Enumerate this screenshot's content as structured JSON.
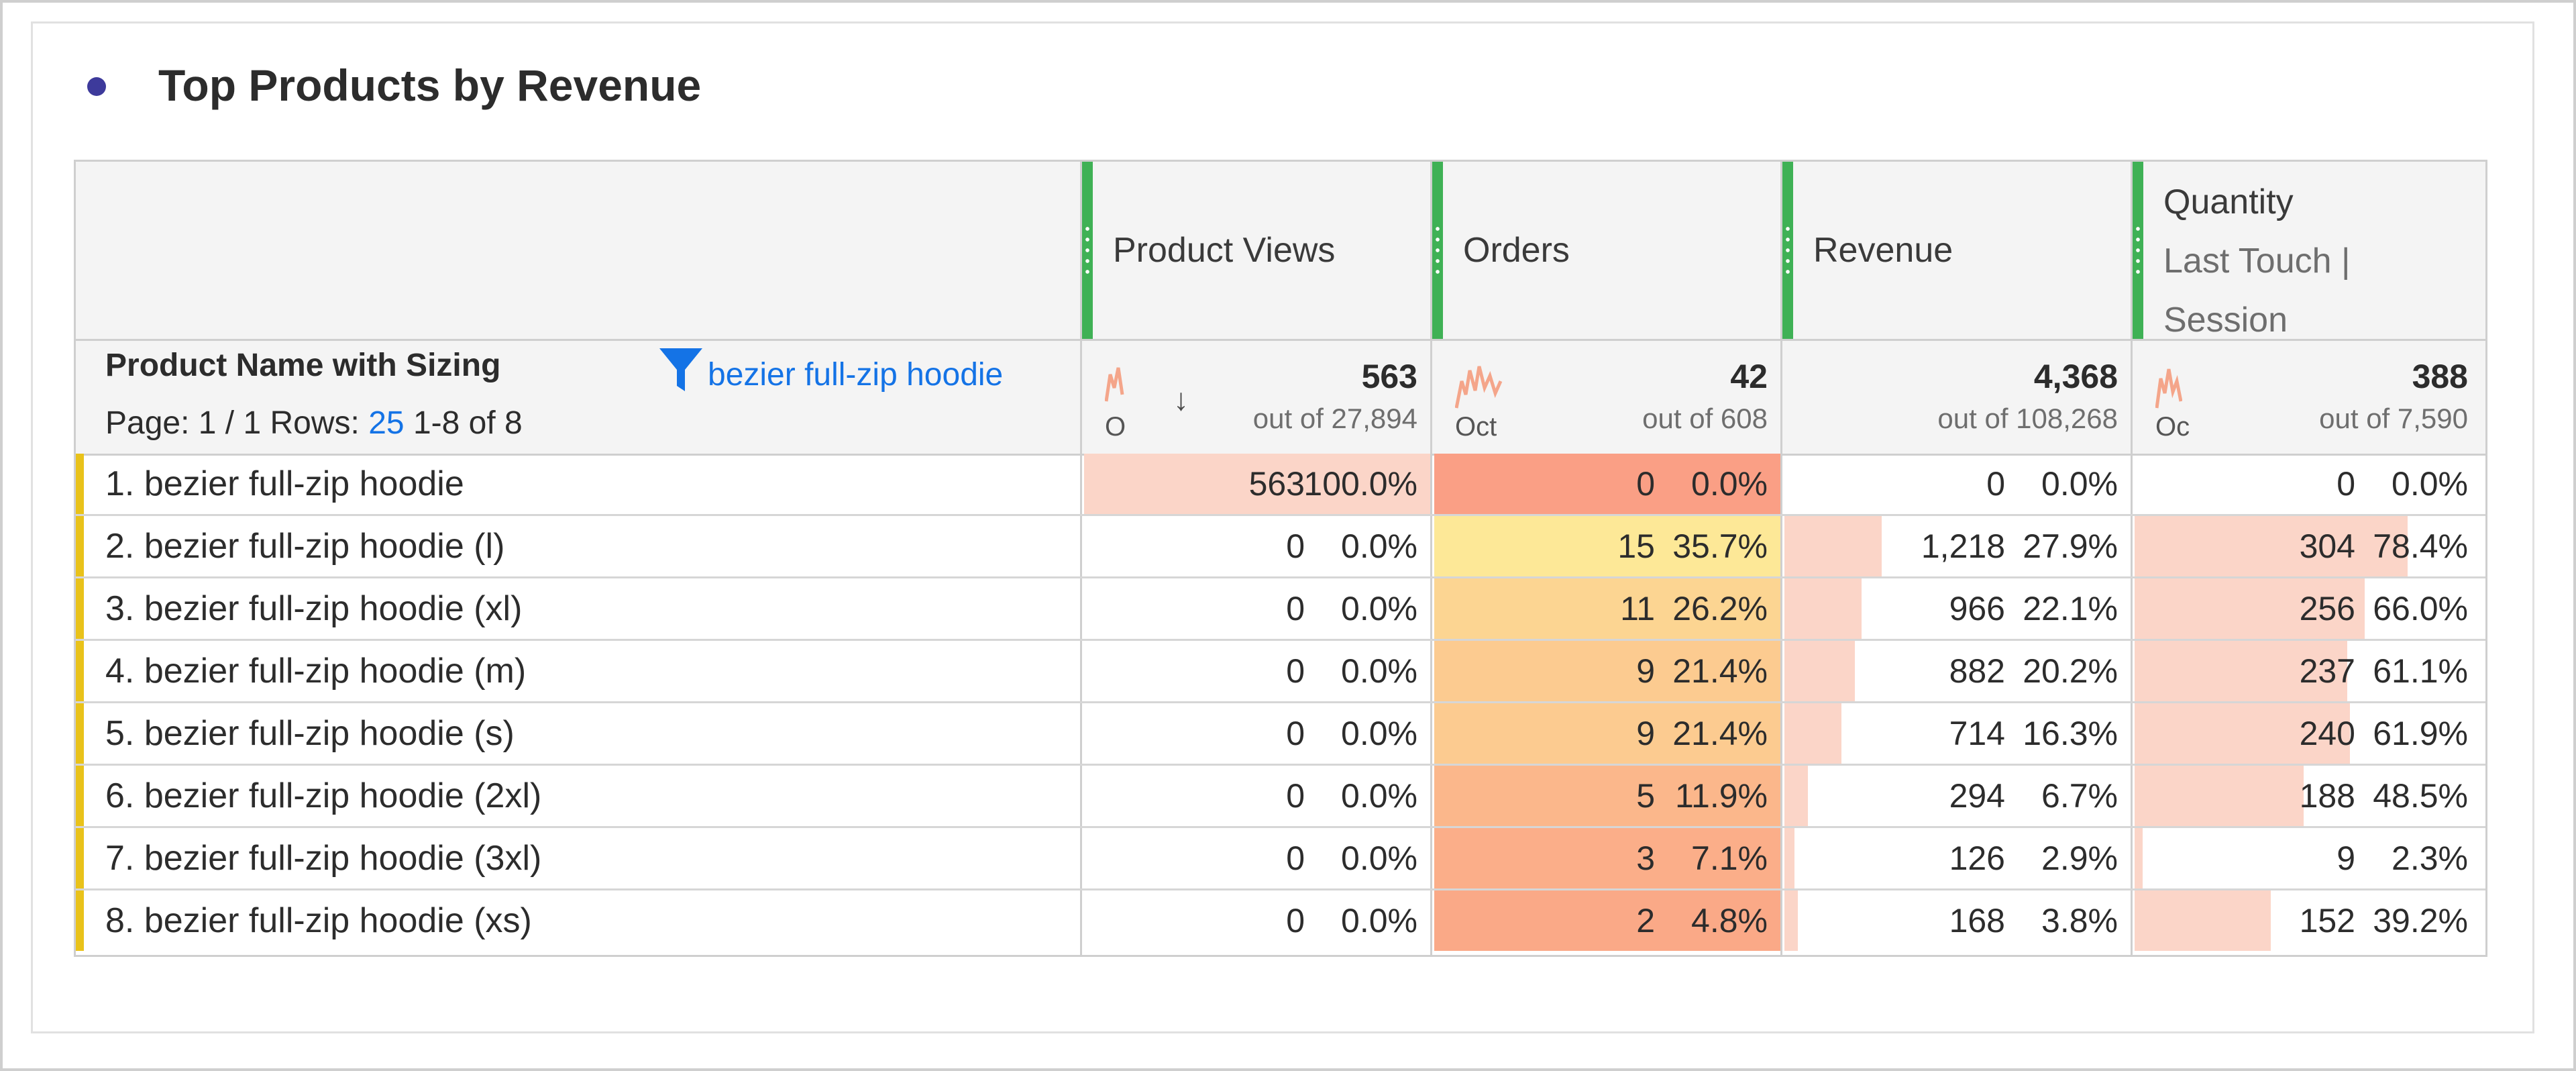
{
  "panel": {
    "title": "Top Products by Revenue"
  },
  "table": {
    "dimension_title": "Product Name with Sizing",
    "page_label": "Page: 1 / 1",
    "rows_label": "Rows:",
    "rows_value": "25",
    "range_label": "1-8 of 8",
    "filter_text": "bezier full-zip hoodie",
    "columns": [
      {
        "label": "Product Views",
        "total": "563",
        "out_of": "out of 27,894",
        "spark_label": "O"
      },
      {
        "label": "Orders",
        "total": "42",
        "out_of": "out of 608",
        "spark_label": "Oct"
      },
      {
        "label": "Revenue",
        "total": "4,368",
        "out_of": "out of 108,268",
        "spark_label": ""
      },
      {
        "label": "Quantity",
        "label_sub1": "Last Touch |",
        "label_sub2": "Session",
        "total": "388",
        "out_of": "out of 7,590",
        "spark_label": "Oc"
      }
    ],
    "sort_indicator": "↓",
    "rows": [
      {
        "index": "1.",
        "name": "bezier full-zip hoodie",
        "cells": [
          {
            "value": "563",
            "pct": "100.0%",
            "share": 1.0
          },
          {
            "value": "0",
            "pct": "0.0%",
            "share": 0.0
          },
          {
            "value": "0",
            "pct": "0.0%",
            "share": 0.0
          },
          {
            "value": "0",
            "pct": "0.0%",
            "share": 0.0
          }
        ]
      },
      {
        "index": "2.",
        "name": "bezier full-zip hoodie (l)",
        "cells": [
          {
            "value": "0",
            "pct": "0.0%",
            "share": 0.0
          },
          {
            "value": "15",
            "pct": "35.7%",
            "share": 0.357
          },
          {
            "value": "1,218",
            "pct": "27.9%",
            "share": 0.279
          },
          {
            "value": "304",
            "pct": "78.4%",
            "share": 0.784
          }
        ]
      },
      {
        "index": "3.",
        "name": "bezier full-zip hoodie (xl)",
        "cells": [
          {
            "value": "0",
            "pct": "0.0%",
            "share": 0.0
          },
          {
            "value": "11",
            "pct": "26.2%",
            "share": 0.262
          },
          {
            "value": "966",
            "pct": "22.1%",
            "share": 0.221
          },
          {
            "value": "256",
            "pct": "66.0%",
            "share": 0.66
          }
        ]
      },
      {
        "index": "4.",
        "name": "bezier full-zip hoodie (m)",
        "cells": [
          {
            "value": "0",
            "pct": "0.0%",
            "share": 0.0
          },
          {
            "value": "9",
            "pct": "21.4%",
            "share": 0.214
          },
          {
            "value": "882",
            "pct": "20.2%",
            "share": 0.202
          },
          {
            "value": "237",
            "pct": "61.1%",
            "share": 0.611
          }
        ]
      },
      {
        "index": "5.",
        "name": "bezier full-zip hoodie (s)",
        "cells": [
          {
            "value": "0",
            "pct": "0.0%",
            "share": 0.0
          },
          {
            "value": "9",
            "pct": "21.4%",
            "share": 0.214
          },
          {
            "value": "714",
            "pct": "16.3%",
            "share": 0.163
          },
          {
            "value": "240",
            "pct": "61.9%",
            "share": 0.619
          }
        ]
      },
      {
        "index": "6.",
        "name": "bezier full-zip hoodie (2xl)",
        "cells": [
          {
            "value": "0",
            "pct": "0.0%",
            "share": 0.0
          },
          {
            "value": "5",
            "pct": "11.9%",
            "share": 0.119
          },
          {
            "value": "294",
            "pct": "6.7%",
            "share": 0.067
          },
          {
            "value": "188",
            "pct": "48.5%",
            "share": 0.485
          }
        ]
      },
      {
        "index": "7.",
        "name": "bezier full-zip hoodie (3xl)",
        "cells": [
          {
            "value": "0",
            "pct": "0.0%",
            "share": 0.0
          },
          {
            "value": "3",
            "pct": "7.1%",
            "share": 0.071
          },
          {
            "value": "126",
            "pct": "2.9%",
            "share": 0.029
          },
          {
            "value": "9",
            "pct": "2.3%",
            "share": 0.023
          }
        ]
      },
      {
        "index": "8.",
        "name": "bezier full-zip hoodie (xs)",
        "cells": [
          {
            "value": "0",
            "pct": "0.0%",
            "share": 0.0
          },
          {
            "value": "2",
            "pct": "4.8%",
            "share": 0.048
          },
          {
            "value": "168",
            "pct": "3.8%",
            "share": 0.038
          },
          {
            "value": "152",
            "pct": "39.2%",
            "share": 0.392
          }
        ]
      }
    ]
  },
  "colors": {
    "accent_green": "#3fb155",
    "row_marker": "#e9c21a",
    "link_blue": "#1473e6",
    "bar_fill": "#fbd5c8",
    "spark": "#f4a58a",
    "heat_low": "#fa9f85",
    "heat_high": "#fde897",
    "title_dot": "#3d3a9b"
  }
}
